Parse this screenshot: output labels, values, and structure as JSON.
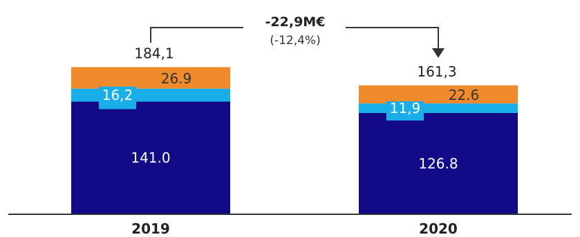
{
  "chart_data": {
    "type": "bar",
    "stacked": true,
    "categories": [
      "2019",
      "2020"
    ],
    "series": [
      {
        "values": [
          141.0,
          126.8
        ],
        "labels": [
          "141.0",
          "126.8"
        ],
        "color": "#120a87",
        "label_color": "#ffffff"
      },
      {
        "values": [
          16.2,
          11.9
        ],
        "labels": [
          "16,2",
          "11,9"
        ],
        "color": "#19aee8",
        "label_color": "#ffffff"
      },
      {
        "values": [
          26.9,
          22.6
        ],
        "labels": [
          "26.9",
          "22.6"
        ],
        "color": "#f08a2c",
        "label_color": "#333333"
      }
    ],
    "totals": [
      184.1,
      161.3
    ],
    "total_labels": [
      "184,1",
      "161,3"
    ],
    "annotation": {
      "change": "-22,9M€",
      "percent": "(-12,4%)"
    },
    "axis_color": "#333333"
  }
}
